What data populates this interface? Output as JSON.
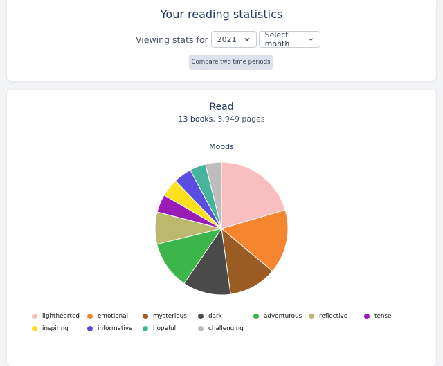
{
  "header": {
    "title": "Your reading statistics",
    "viewing_label": "Viewing stats for",
    "year_value": "2021",
    "month_placeholder": "Select month",
    "compare_label": "Compare two time periods"
  },
  "read_section": {
    "title": "Read",
    "books_count": "13 books",
    "separator": ", ",
    "pages_count": "3,949 pages"
  },
  "chart_data": {
    "type": "pie",
    "title": "Moods",
    "categories": [
      "lighthearted",
      "emotional",
      "mysterious",
      "dark",
      "adventurous",
      "reflective",
      "tense",
      "inspiring",
      "informative",
      "hopeful",
      "challenging"
    ],
    "values": [
      21,
      16,
      12,
      12,
      12,
      8,
      4.5,
      4.5,
      4.5,
      4,
      4
    ],
    "colors": [
      "#f9bfbf",
      "#f5852e",
      "#9a5c22",
      "#4a4a4a",
      "#3cb54a",
      "#bcb86e",
      "#9b1bb6",
      "#fde01e",
      "#5b4de1",
      "#47b39b",
      "#bdbdbd"
    ],
    "legend_placement": "bottom"
  }
}
